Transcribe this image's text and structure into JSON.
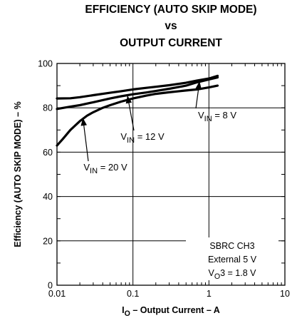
{
  "chart_data": {
    "type": "line",
    "title": [
      "EFFICIENCY (AUTO SKIP MODE)",
      "vs",
      "OUTPUT CURRENT"
    ],
    "xlabel": {
      "prefix": "I",
      "sub": "O",
      "rest": " – Output Current – A"
    },
    "ylabel": "Efficiency (AUTO SKIP MODE) – %",
    "x_scale": "log",
    "xlim": [
      0.01,
      10
    ],
    "ylim": [
      0,
      100
    ],
    "x_ticks": [
      0.01,
      0.1,
      1,
      10
    ],
    "x_tick_labels": [
      "0.01",
      "0.1",
      "1",
      "10"
    ],
    "y_ticks": [
      0,
      20,
      40,
      60,
      80,
      100
    ],
    "y_tick_labels": [
      "0",
      "20",
      "40",
      "60",
      "80",
      "100"
    ],
    "grid": true,
    "series": [
      {
        "key": "8V",
        "x": [
          0.01,
          0.015,
          0.02,
          0.03,
          0.05,
          0.07,
          0.1,
          0.15,
          0.2,
          0.3,
          0.5,
          0.7,
          1.0,
          1.3
        ],
        "y": [
          84.2,
          84.3,
          84.8,
          85.7,
          86.8,
          87.5,
          88.3,
          89.0,
          89.5,
          90.2,
          91.3,
          92.3,
          93.2,
          94.4
        ]
      },
      {
        "key": "12V",
        "x": [
          0.01,
          0.015,
          0.02,
          0.03,
          0.05,
          0.07,
          0.1,
          0.15,
          0.2,
          0.3,
          0.5,
          0.7,
          1.0,
          1.3
        ],
        "y": [
          79.5,
          80.5,
          81.2,
          82.5,
          84.2,
          85.2,
          86.1,
          86.9,
          87.6,
          88.6,
          90.0,
          91.5,
          92.8,
          93.7
        ]
      },
      {
        "key": "20V",
        "x": [
          0.01,
          0.012,
          0.015,
          0.02,
          0.025,
          0.03,
          0.04,
          0.05,
          0.07,
          0.1,
          0.15,
          0.2,
          0.3,
          0.5,
          0.7,
          1.0,
          1.3
        ],
        "y": [
          63.0,
          66.0,
          70.0,
          74.0,
          76.5,
          78.0,
          80.0,
          81.2,
          82.8,
          84.2,
          85.5,
          86.3,
          87.0,
          87.8,
          88.3,
          89.2,
          90.0
        ]
      }
    ],
    "annotations": [
      {
        "main": "V",
        "sub": "IN",
        "rest": " = 8 V",
        "series": "8V"
      },
      {
        "main": "V",
        "sub": "IN",
        "rest": " = 12 V",
        "series": "12V"
      },
      {
        "main": "V",
        "sub": "IN",
        "rest": " = 20 V",
        "series": "20V"
      }
    ],
    "note": [
      {
        "main": "SBRC CH3",
        "sub": "",
        "rest": ""
      },
      {
        "main": "External 5 V",
        "sub": "",
        "rest": ""
      },
      {
        "main": "V",
        "sub": "O",
        "rest": "3 = 1.8 V"
      }
    ]
  }
}
